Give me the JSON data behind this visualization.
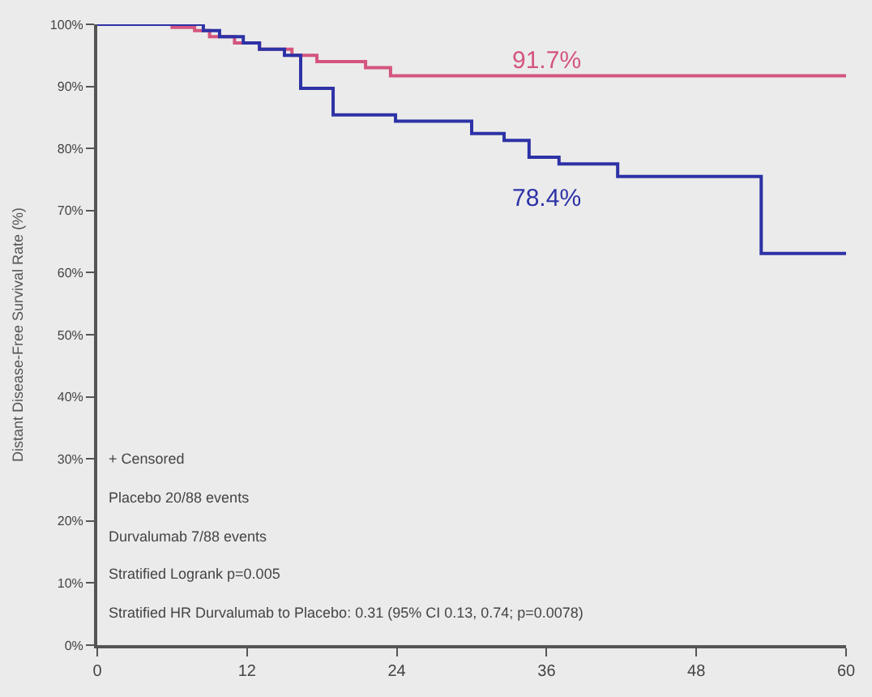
{
  "chart_data": {
    "type": "step",
    "ylabel": "Distant Disease-Free Survival Rate (%)",
    "series": [
      {
        "color": "#d4557e",
        "x": [
          0,
          6,
          7.8,
          9,
          11,
          13,
          15.6,
          17.6,
          21.5,
          23.5,
          60
        ],
        "values": [
          100,
          99.5,
          99,
          98,
          97,
          96,
          95,
          94,
          93,
          91.7,
          91.7
        ]
      },
      {
        "color": "#2d32a6",
        "x": [
          0,
          8.5,
          9.8,
          11.7,
          13,
          15,
          16.3,
          18.9,
          23.9,
          30,
          32.6,
          34.6,
          37,
          41.7,
          53.2,
          60
        ],
        "values": [
          100,
          99,
          98,
          97,
          96,
          95,
          89.7,
          85.4,
          84.4,
          82.4,
          81.3,
          78.6,
          77.5,
          75.5,
          63.1,
          63.1
        ]
      }
    ],
    "xlim": [
      0,
      60
    ],
    "xticks": [
      0,
      12,
      24,
      36,
      48,
      60
    ],
    "ylim": [
      0,
      100
    ],
    "yticks": [
      {
        "value": 0,
        "label": "0%"
      },
      {
        "value": 10,
        "label": "10%"
      },
      {
        "value": 20,
        "label": "20%"
      },
      {
        "value": 30,
        "label": "30%"
      },
      {
        "value": 40,
        "label": "40%"
      },
      {
        "value": 50,
        "label": "50%"
      },
      {
        "value": 60,
        "label": "60%"
      },
      {
        "value": 70,
        "label": "70%"
      },
      {
        "value": 80,
        "label": "80%"
      },
      {
        "value": 90,
        "label": "90%"
      },
      {
        "value": 100,
        "label": "100%"
      }
    ],
    "grid": false,
    "legend": false,
    "annotations": [
      "91.7%",
      "78.4%",
      "+ Censored",
      "Placebo 20/88 events",
      "Durvalumab 7/88 events",
      "Stratified Logrank p=0.005",
      "Stratified HR Durvalumab to Placebo: 0.31 (95% CI 0.13, 0.74; p=0.0078)"
    ]
  }
}
